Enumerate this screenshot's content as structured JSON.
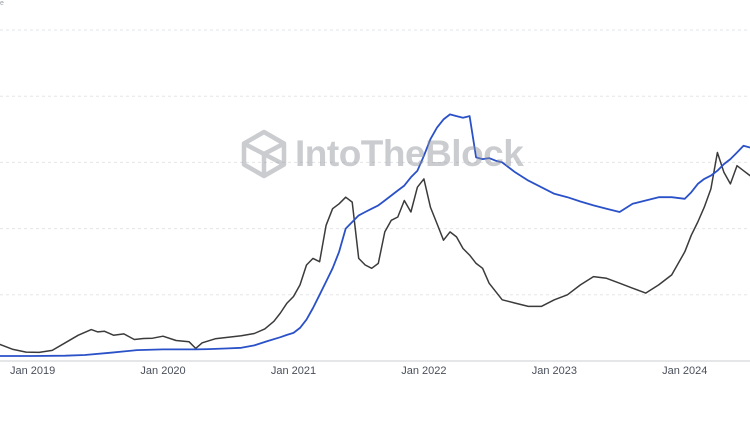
{
  "watermark": {
    "text": "IntoTheBlock"
  },
  "top_fragment": "e",
  "colors": {
    "series_dark": "#3b3b3b",
    "series_blue": "#2a51c8",
    "grid": "#e3e5e8",
    "axis_line": "#c9ccd1",
    "tick_text": "#4a4f5a",
    "logo": "#8c8f96"
  },
  "chart_data": {
    "type": "line",
    "title": "",
    "xlabel": "",
    "ylabel": "",
    "grid": true,
    "legend": "none",
    "x_ticks": [
      "Jan 2019",
      "Jan 2020",
      "Jan 2021",
      "Jan 2022",
      "Jan 2023",
      "Jan 2024"
    ],
    "x_range": [
      2018.75,
      2024.5
    ],
    "y_range": [
      0,
      100
    ],
    "series": [
      {
        "color": "#3b3b3b",
        "x": [
          2018.75,
          2018.85,
          2018.95,
          2019.05,
          2019.15,
          2019.25,
          2019.35,
          2019.45,
          2019.5,
          2019.55,
          2019.62,
          2019.7,
          2019.78,
          2019.85,
          2019.92,
          2020.0,
          2020.1,
          2020.2,
          2020.25,
          2020.3,
          2020.4,
          2020.5,
          2020.6,
          2020.7,
          2020.78,
          2020.85,
          2020.9,
          2020.95,
          2021.0,
          2021.05,
          2021.1,
          2021.15,
          2021.2,
          2021.25,
          2021.3,
          2021.35,
          2021.4,
          2021.45,
          2021.5,
          2021.55,
          2021.6,
          2021.65,
          2021.7,
          2021.75,
          2021.8,
          2021.85,
          2021.9,
          2021.95,
          2022.0,
          2022.05,
          2022.1,
          2022.15,
          2022.2,
          2022.25,
          2022.3,
          2022.35,
          2022.4,
          2022.45,
          2022.5,
          2022.6,
          2022.7,
          2022.8,
          2022.9,
          2023.0,
          2023.1,
          2023.2,
          2023.3,
          2023.4,
          2023.5,
          2023.6,
          2023.7,
          2023.8,
          2023.9,
          2024.0,
          2024.05,
          2024.1,
          2024.15,
          2024.2,
          2024.25,
          2024.3,
          2024.35,
          2024.4,
          2024.45,
          2024.5
        ],
        "y": [
          5,
          3.5,
          2.7,
          2.6,
          3.2,
          5.5,
          7.8,
          9.5,
          8.8,
          9.0,
          7.8,
          8.2,
          6.5,
          6.8,
          6.9,
          7.5,
          6.2,
          5.8,
          3.8,
          5.5,
          6.7,
          7.2,
          7.6,
          8.3,
          9.7,
          12,
          14.5,
          17.5,
          19.5,
          23,
          29,
          31,
          30,
          41,
          46,
          47.5,
          49.5,
          48,
          31,
          29,
          28,
          29.5,
          39,
          42.5,
          43.5,
          48.5,
          45,
          52.5,
          55,
          46.5,
          41.5,
          36.5,
          39,
          37.5,
          34,
          32,
          29.5,
          28,
          23.5,
          18.5,
          17.5,
          16.5,
          16.5,
          18.5,
          20,
          23,
          25.5,
          25,
          23.5,
          22,
          20.5,
          23,
          26,
          33,
          38,
          42,
          46.5,
          52,
          63,
          57,
          53.5,
          59,
          57.5,
          56
        ]
      },
      {
        "color": "#2a51c8",
        "x": [
          2018.75,
          2019.0,
          2019.25,
          2019.4,
          2019.6,
          2019.8,
          2020.0,
          2020.15,
          2020.25,
          2020.35,
          2020.5,
          2020.6,
          2020.7,
          2020.8,
          2020.9,
          2020.95,
          2021.0,
          2021.05,
          2021.1,
          2021.15,
          2021.2,
          2021.25,
          2021.3,
          2021.35,
          2021.4,
          2021.45,
          2021.5,
          2021.55,
          2021.6,
          2021.65,
          2021.7,
          2021.75,
          2021.8,
          2021.85,
          2021.9,
          2021.95,
          2022.0,
          2022.05,
          2022.1,
          2022.15,
          2022.2,
          2022.25,
          2022.3,
          2022.35,
          2022.4,
          2022.45,
          2022.5,
          2022.55,
          2022.6,
          2022.7,
          2022.8,
          2022.9,
          2023.0,
          2023.1,
          2023.2,
          2023.3,
          2023.4,
          2023.5,
          2023.6,
          2023.7,
          2023.8,
          2023.9,
          2024.0,
          2024.05,
          2024.1,
          2024.15,
          2024.2,
          2024.25,
          2024.3,
          2024.35,
          2024.4,
          2024.45,
          2024.5
        ],
        "y": [
          1.5,
          1.5,
          1.6,
          1.8,
          2.5,
          3.3,
          3.5,
          3.5,
          3.5,
          3.6,
          3.8,
          4.0,
          4.7,
          6.0,
          7.2,
          7.9,
          8.5,
          10,
          12.5,
          16,
          20,
          24,
          28,
          33,
          40,
          42,
          44,
          45,
          46,
          47,
          48.5,
          50,
          51.5,
          53,
          55.5,
          57.5,
          62,
          67,
          70.5,
          73,
          74.5,
          74,
          73.5,
          74,
          61.5,
          61,
          61.3,
          60.5,
          60,
          57,
          54.5,
          52.5,
          50.5,
          49.5,
          48.2,
          47,
          46,
          45,
          47.5,
          48.5,
          49.5,
          49.5,
          49,
          51,
          53.5,
          55,
          56,
          57.5,
          59.5,
          61,
          63,
          65,
          64.5
        ]
      }
    ]
  }
}
